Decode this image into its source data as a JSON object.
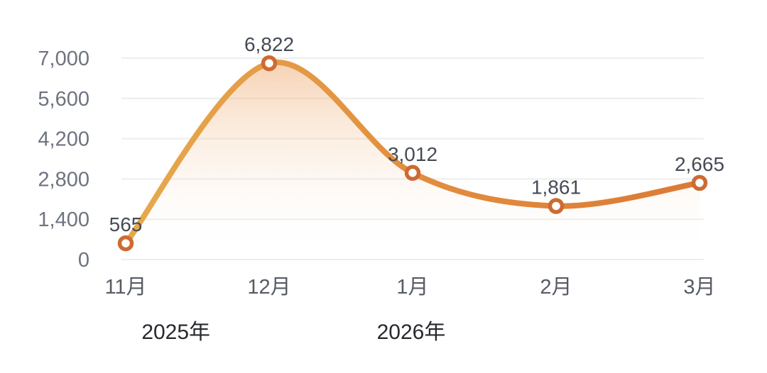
{
  "chart_data": {
    "type": "area",
    "title": "",
    "xlabel": "",
    "ylabel": "",
    "categories": [
      "11月",
      "12月",
      "1月",
      "2月",
      "3月"
    ],
    "values": [
      565,
      6822,
      3012,
      1861,
      2665
    ],
    "point_labels": [
      "565",
      "6,822",
      "3,012",
      "1,861",
      "2,665"
    ],
    "y_ticks": [
      0,
      1400,
      2800,
      4200,
      5600,
      7000
    ],
    "y_tick_labels": [
      "0",
      "1,400",
      "2,800",
      "4,200",
      "5,600",
      "7,000"
    ],
    "ylim": [
      0,
      7000
    ],
    "year_labels": [
      {
        "text": "2025年",
        "index": 0.35
      },
      {
        "text": "2026年",
        "index": 1.99
      }
    ],
    "grid": true,
    "smooth": true,
    "legend": "none",
    "colors": {
      "background": "#FFFFFF",
      "line_start": "#E7A94C",
      "line_mid": "#E28E3F",
      "line_end": "#DC7A34",
      "marker_stroke": "#CE6A33",
      "marker_fill": "#FFFFFF",
      "area_top": "rgba(235,152,80,0.45)",
      "area_bottom": "rgba(255,255,255,0)",
      "gridline": "#ECEDEE",
      "y_axis_label": "#6E7380",
      "x_axis_label": "#565B63",
      "data_label": "#454B56",
      "year_label": "#27292E"
    }
  }
}
